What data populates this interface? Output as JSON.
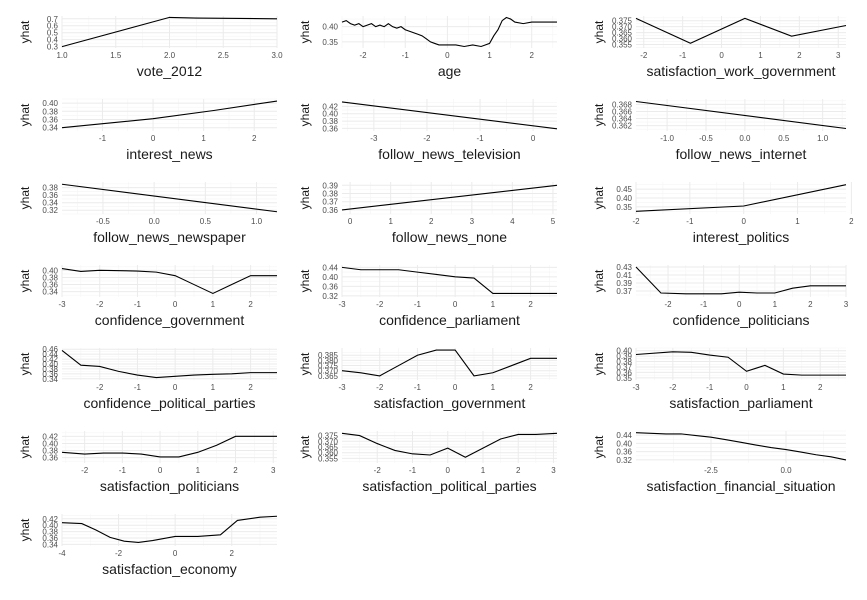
{
  "colors": {
    "line": "#000000",
    "grid": "#ebebeb",
    "text": "#1a1a1a",
    "tick": "#4d4d4d"
  },
  "chart_data": [
    {
      "type": "line",
      "xlabel": "vote_2012",
      "ylabel": "yhat",
      "xlim": [
        1.0,
        3.0
      ],
      "ylim": [
        0.28,
        0.74
      ],
      "xticks": [
        1.0,
        1.5,
        2.0,
        2.5,
        3.0
      ],
      "xtick_labels": [
        "1.0",
        "1.5",
        "2.0",
        "2.5",
        "3.0"
      ],
      "yticks": [
        0.3,
        0.4,
        0.5,
        0.6,
        0.7
      ],
      "ytick_labels": [
        "0.3",
        "0.4",
        "0.5",
        "0.6",
        "0.7"
      ],
      "x": [
        1.0,
        2.0,
        2.25,
        3.0
      ],
      "y": [
        0.3,
        0.72,
        0.71,
        0.7
      ]
    },
    {
      "type": "line",
      "xlabel": "age",
      "ylabel": "yhat",
      "xlim": [
        -2.5,
        2.6
      ],
      "ylim": [
        0.33,
        0.435
      ],
      "xticks": [
        -2,
        -1,
        0,
        1,
        2
      ],
      "xtick_labels": [
        "-2",
        "-1",
        "0",
        "1",
        "2"
      ],
      "yticks": [
        0.35,
        0.4
      ],
      "ytick_labels": [
        "0.35",
        "0.40"
      ],
      "x": [
        -2.5,
        -2.4,
        -2.3,
        -2.2,
        -2.1,
        -2.0,
        -1.9,
        -1.8,
        -1.7,
        -1.6,
        -1.5,
        -1.4,
        -1.3,
        -1.2,
        -1.1,
        -1.0,
        -0.9,
        -0.8,
        -0.7,
        -0.6,
        -0.5,
        -0.4,
        -0.3,
        -0.2,
        -0.1,
        0.0,
        0.2,
        0.4,
        0.6,
        0.8,
        1.0,
        1.1,
        1.2,
        1.3,
        1.4,
        1.5,
        1.6,
        1.8,
        2.0,
        2.3,
        2.6
      ],
      "y": [
        0.415,
        0.42,
        0.41,
        0.405,
        0.41,
        0.4,
        0.405,
        0.41,
        0.4,
        0.405,
        0.4,
        0.41,
        0.4,
        0.395,
        0.4,
        0.39,
        0.385,
        0.38,
        0.375,
        0.37,
        0.36,
        0.35,
        0.345,
        0.34,
        0.34,
        0.34,
        0.34,
        0.335,
        0.34,
        0.335,
        0.345,
        0.37,
        0.39,
        0.42,
        0.43,
        0.425,
        0.415,
        0.41,
        0.415,
        0.415,
        0.415
      ]
    },
    {
      "type": "line",
      "xlabel": "satisfaction_work_government",
      "ylabel": "yhat",
      "xlim": [
        -2.2,
        3.2
      ],
      "ylim": [
        0.352,
        0.379
      ],
      "xticks": [
        -2,
        -1,
        0,
        1,
        2,
        3
      ],
      "xtick_labels": [
        "-2",
        "-1",
        "0",
        "1",
        "2",
        "3"
      ],
      "yticks": [
        0.355,
        0.36,
        0.365,
        0.37,
        0.375
      ],
      "ytick_labels": [
        "0.355",
        "0.360",
        "0.365",
        "0.370",
        "0.375"
      ],
      "x": [
        -2.2,
        -0.8,
        0.6,
        1.8,
        3.2
      ],
      "y": [
        0.377,
        0.356,
        0.377,
        0.362,
        0.371
      ]
    },
    {
      "type": "line",
      "xlabel": "interest_news",
      "ylabel": "yhat",
      "xlim": [
        -1.8,
        2.45
      ],
      "ylim": [
        0.332,
        0.41
      ],
      "xticks": [
        -1,
        0,
        1,
        2
      ],
      "xtick_labels": [
        "-1",
        "0",
        "1",
        "2"
      ],
      "yticks": [
        0.34,
        0.36,
        0.38,
        0.4
      ],
      "ytick_labels": [
        "0.34",
        "0.36",
        "0.38",
        "0.40"
      ],
      "x": [
        -1.8,
        0.0,
        1.2,
        2.45
      ],
      "y": [
        0.34,
        0.362,
        0.382,
        0.405
      ]
    },
    {
      "type": "line",
      "xlabel": "follow_news_television",
      "ylabel": "yhat",
      "xlim": [
        -3.6,
        0.45
      ],
      "ylim": [
        0.353,
        0.44
      ],
      "xticks": [
        -3,
        -2,
        -1,
        0
      ],
      "xtick_labels": [
        "-3",
        "-2",
        "-1",
        "0"
      ],
      "yticks": [
        0.36,
        0.38,
        0.4,
        0.42
      ],
      "ytick_labels": [
        "0.36",
        "0.38",
        "0.40",
        "0.42"
      ],
      "x": [
        -3.6,
        0.45
      ],
      "y": [
        0.432,
        0.359
      ]
    },
    {
      "type": "line",
      "xlabel": "follow_news_internet",
      "ylabel": "yhat",
      "xlim": [
        -1.4,
        1.3
      ],
      "ylim": [
        0.3605,
        0.3695
      ],
      "xticks": [
        -1.0,
        -0.5,
        0.0,
        0.5,
        1.0
      ],
      "xtick_labels": [
        "-1.0",
        "-0.5",
        "0.0",
        "0.5",
        "1.0"
      ],
      "yticks": [
        0.362,
        0.364,
        0.366,
        0.368
      ],
      "ytick_labels": [
        "0.362",
        "0.364",
        "0.366",
        "0.368"
      ],
      "x": [
        -1.4,
        1.3
      ],
      "y": [
        0.3688,
        0.3612
      ]
    },
    {
      "type": "line",
      "xlabel": "follow_news_newspaper",
      "ylabel": "yhat",
      "xlim": [
        -0.9,
        1.2
      ],
      "ylim": [
        0.31,
        0.395
      ],
      "xticks": [
        -0.5,
        0.0,
        0.5,
        1.0
      ],
      "xtick_labels": [
        "-0.5",
        "0.0",
        "0.5",
        "1.0"
      ],
      "yticks": [
        0.32,
        0.34,
        0.36,
        0.38
      ],
      "ytick_labels": [
        "0.32",
        "0.34",
        "0.36",
        "0.38"
      ],
      "x": [
        -0.9,
        1.2
      ],
      "y": [
        0.389,
        0.316
      ]
    },
    {
      "type": "line",
      "xlabel": "follow_news_none",
      "ylabel": "yhat",
      "xlim": [
        -0.2,
        5.1
      ],
      "ylim": [
        0.355,
        0.394
      ],
      "xticks": [
        0,
        1,
        2,
        3,
        4,
        5
      ],
      "xtick_labels": [
        "0",
        "1",
        "2",
        "3",
        "4",
        "5"
      ],
      "yticks": [
        0.36,
        0.37,
        0.38,
        0.39
      ],
      "ytick_labels": [
        "0.36",
        "0.37",
        "0.38",
        "0.39"
      ],
      "x": [
        -0.2,
        5.1
      ],
      "y": [
        0.36,
        0.39
      ]
    },
    {
      "type": "line",
      "xlabel": "interest_politics",
      "ylabel": "yhat",
      "xlim": [
        -2.0,
        1.9
      ],
      "ylim": [
        0.31,
        0.49
      ],
      "xticks": [
        -2,
        -1,
        0,
        1,
        2
      ],
      "xtick_labels": [
        "-2",
        "-1",
        "0",
        "1",
        "2"
      ],
      "yticks": [
        0.35,
        0.4,
        0.45
      ],
      "ytick_labels": [
        "0.35",
        "0.40",
        "0.45"
      ],
      "x": [
        -2.0,
        0.0,
        1.9
      ],
      "y": [
        0.325,
        0.355,
        0.475
      ]
    },
    {
      "type": "line",
      "xlabel": "confidence_government",
      "ylabel": "yhat",
      "xlim": [
        -3.0,
        2.7
      ],
      "ylim": [
        0.325,
        0.415
      ],
      "xticks": [
        -3,
        -2,
        -1,
        0,
        1,
        2
      ],
      "xtick_labels": [
        "-3",
        "-2",
        "-1",
        "0",
        "1",
        "2"
      ],
      "yticks": [
        0.34,
        0.36,
        0.38,
        0.4
      ],
      "ytick_labels": [
        "0.34",
        "0.36",
        "0.38",
        "0.40"
      ],
      "x": [
        -3.0,
        -2.5,
        -2.0,
        -1.0,
        -0.5,
        0.0,
        0.5,
        1.0,
        1.5,
        2.0,
        2.7
      ],
      "y": [
        0.405,
        0.397,
        0.4,
        0.398,
        0.395,
        0.385,
        0.36,
        0.335,
        0.36,
        0.385,
        0.385
      ]
    },
    {
      "type": "line",
      "xlabel": "confidence_parliament",
      "ylabel": "yhat",
      "xlim": [
        -3.0,
        2.7
      ],
      "ylim": [
        0.315,
        0.45
      ],
      "xticks": [
        -3,
        -2,
        -1,
        0,
        1,
        2
      ],
      "xtick_labels": [
        "-3",
        "-2",
        "-1",
        "0",
        "1",
        "2"
      ],
      "yticks": [
        0.32,
        0.36,
        0.4,
        0.44
      ],
      "ytick_labels": [
        "0.32",
        "0.36",
        "0.40",
        "0.44"
      ],
      "x": [
        -3.0,
        -2.5,
        -2.0,
        -1.5,
        -1.0,
        -0.5,
        0.0,
        0.5,
        1.0,
        1.5,
        2.7
      ],
      "y": [
        0.44,
        0.43,
        0.43,
        0.43,
        0.42,
        0.41,
        0.4,
        0.395,
        0.33,
        0.33,
        0.33
      ]
    },
    {
      "type": "line",
      "xlabel": "confidence_politicians",
      "ylabel": "yhat",
      "xlim": [
        -2.9,
        3.0
      ],
      "ylim": [
        0.355,
        0.435
      ],
      "xticks": [
        -2,
        -1,
        0,
        1,
        2,
        3
      ],
      "xtick_labels": [
        "-2",
        "-1",
        "0",
        "1",
        "2",
        "3"
      ],
      "yticks": [
        0.37,
        0.39,
        0.41,
        0.43
      ],
      "ytick_labels": [
        "0.37",
        "0.39",
        "0.41",
        "0.43"
      ],
      "x": [
        -2.9,
        -2.2,
        -1.5,
        -0.5,
        0.0,
        0.5,
        1.0,
        1.5,
        2.0,
        2.5,
        3.0
      ],
      "y": [
        0.43,
        0.365,
        0.363,
        0.363,
        0.367,
        0.365,
        0.365,
        0.377,
        0.383,
        0.383,
        0.383
      ]
    },
    {
      "type": "line",
      "xlabel": "confidence_political_parties",
      "ylabel": "yhat",
      "xlim": [
        -3.0,
        2.7
      ],
      "ylim": [
        0.335,
        0.465
      ],
      "xticks": [
        -2,
        -1,
        0,
        1,
        2
      ],
      "xtick_labels": [
        "-2",
        "-1",
        "0",
        "1",
        "2"
      ],
      "yticks": [
        0.34,
        0.36,
        0.38,
        0.4,
        0.42,
        0.44,
        0.46
      ],
      "ytick_labels": [
        "0.34",
        "0.36",
        "0.38",
        "0.40",
        "0.42",
        "0.44",
        "0.46"
      ],
      "x": [
        -3.0,
        -2.5,
        -2.0,
        -1.5,
        -1.0,
        -0.5,
        0.0,
        0.5,
        1.0,
        1.5,
        2.0,
        2.7
      ],
      "y": [
        0.455,
        0.395,
        0.39,
        0.37,
        0.355,
        0.345,
        0.35,
        0.355,
        0.358,
        0.36,
        0.365,
        0.365
      ]
    },
    {
      "type": "line",
      "xlabel": "satisfaction_government",
      "ylabel": "yhat",
      "xlim": [
        -3.0,
        2.7
      ],
      "ylim": [
        0.361,
        0.392
      ],
      "xticks": [
        -3,
        -2,
        -1,
        0,
        1,
        2
      ],
      "xtick_labels": [
        "-3",
        "-2",
        "-1",
        "0",
        "1",
        "2"
      ],
      "yticks": [
        0.365,
        0.37,
        0.375,
        0.38,
        0.385
      ],
      "ytick_labels": [
        "0.365",
        "0.370",
        "0.375",
        "0.380",
        "0.385"
      ],
      "x": [
        -3.0,
        -2.5,
        -2.0,
        -1.5,
        -1.0,
        -0.5,
        0.0,
        0.5,
        1.0,
        1.5,
        2.0,
        2.7
      ],
      "y": [
        0.37,
        0.368,
        0.365,
        0.375,
        0.385,
        0.39,
        0.39,
        0.365,
        0.368,
        0.375,
        0.382,
        0.382
      ]
    },
    {
      "type": "line",
      "xlabel": "satisfaction_parliament",
      "ylabel": "yhat",
      "xlim": [
        -3.0,
        2.7
      ],
      "ylim": [
        0.346,
        0.405
      ],
      "xticks": [
        -3,
        -2,
        -1,
        0,
        1,
        2
      ],
      "xtick_labels": [
        "-3",
        "-2",
        "-1",
        "0",
        "1",
        "2"
      ],
      "yticks": [
        0.35,
        0.36,
        0.37,
        0.38,
        0.39,
        0.4
      ],
      "ytick_labels": [
        "0.35",
        "0.36",
        "0.37",
        "0.38",
        "0.39",
        "0.40"
      ],
      "x": [
        -3.0,
        -2.0,
        -1.5,
        -1.0,
        -0.5,
        0.0,
        0.5,
        1.0,
        1.5,
        2.0,
        2.7
      ],
      "y": [
        0.393,
        0.398,
        0.397,
        0.392,
        0.388,
        0.362,
        0.373,
        0.357,
        0.355,
        0.355,
        0.355
      ]
    },
    {
      "type": "line",
      "xlabel": "satisfaction_politicians",
      "ylabel": "yhat",
      "xlim": [
        -2.6,
        3.1
      ],
      "ylim": [
        0.345,
        0.435
      ],
      "xticks": [
        -2,
        -1,
        0,
        1,
        2,
        3
      ],
      "xtick_labels": [
        "-2",
        "-1",
        "0",
        "1",
        "2",
        "3"
      ],
      "yticks": [
        0.36,
        0.38,
        0.4,
        0.42
      ],
      "ytick_labels": [
        "0.36",
        "0.38",
        "0.40",
        "0.42"
      ],
      "x": [
        -2.6,
        -2.0,
        -1.5,
        -1.0,
        -0.5,
        0.0,
        0.5,
        1.0,
        1.5,
        2.0,
        3.1
      ],
      "y": [
        0.375,
        0.37,
        0.373,
        0.373,
        0.37,
        0.362,
        0.362,
        0.375,
        0.395,
        0.42,
        0.42
      ]
    },
    {
      "type": "line",
      "xlabel": "satisfaction_political_parties",
      "ylabel": "yhat",
      "xlim": [
        -3.0,
        3.1
      ],
      "ylim": [
        0.351,
        0.379
      ],
      "xticks": [
        -2,
        -1,
        0,
        1,
        2,
        3
      ],
      "xtick_labels": [
        "-2",
        "-1",
        "0",
        "1",
        "2",
        "3"
      ],
      "yticks": [
        0.355,
        0.36,
        0.365,
        0.37,
        0.375
      ],
      "ytick_labels": [
        "0.355",
        "0.360",
        "0.365",
        "0.370",
        "0.375"
      ],
      "x": [
        -3.0,
        -2.5,
        -2.0,
        -1.5,
        -1.0,
        -0.5,
        0.0,
        0.5,
        1.0,
        1.5,
        2.0,
        2.5,
        3.1
      ],
      "y": [
        0.377,
        0.375,
        0.368,
        0.362,
        0.359,
        0.358,
        0.364,
        0.356,
        0.364,
        0.372,
        0.376,
        0.376,
        0.377
      ]
    },
    {
      "type": "line",
      "xlabel": "satisfaction_financial_situation",
      "ylabel": "yhat",
      "xlim": [
        -5.0,
        2.0
      ],
      "ylim": [
        0.305,
        0.46
      ],
      "xticks": [
        -2.5,
        0.0
      ],
      "xtick_labels": [
        "-2.5",
        "0.0"
      ],
      "yticks": [
        0.32,
        0.36,
        0.4,
        0.44
      ],
      "ytick_labels": [
        "0.32",
        "0.36",
        "0.40",
        "0.44"
      ],
      "x": [
        -5.0,
        -4.0,
        -3.5,
        -3.0,
        -2.5,
        -2.0,
        -1.5,
        -1.0,
        -0.5,
        0.0,
        0.5,
        1.0,
        1.5,
        2.0
      ],
      "y": [
        0.452,
        0.446,
        0.446,
        0.438,
        0.43,
        0.418,
        0.405,
        0.392,
        0.38,
        0.37,
        0.358,
        0.345,
        0.335,
        0.32
      ]
    },
    {
      "type": "line",
      "xlabel": "satisfaction_economy",
      "ylabel": "yhat",
      "xlim": [
        -4.0,
        3.6
      ],
      "ylim": [
        0.335,
        0.435
      ],
      "xticks": [
        -4,
        -2,
        0,
        2
      ],
      "xtick_labels": [
        "-4",
        "-2",
        "0",
        "2"
      ],
      "yticks": [
        0.34,
        0.36,
        0.38,
        0.4,
        0.42
      ],
      "ytick_labels": [
        "0.34",
        "0.36",
        "0.38",
        "0.40",
        "0.42"
      ],
      "x": [
        -4.0,
        -3.3,
        -2.8,
        -2.3,
        -1.8,
        -1.3,
        -0.8,
        0.0,
        0.8,
        1.6,
        2.2,
        3.0,
        3.6
      ],
      "y": [
        0.408,
        0.405,
        0.385,
        0.362,
        0.35,
        0.346,
        0.352,
        0.365,
        0.365,
        0.37,
        0.415,
        0.425,
        0.428
      ]
    }
  ]
}
